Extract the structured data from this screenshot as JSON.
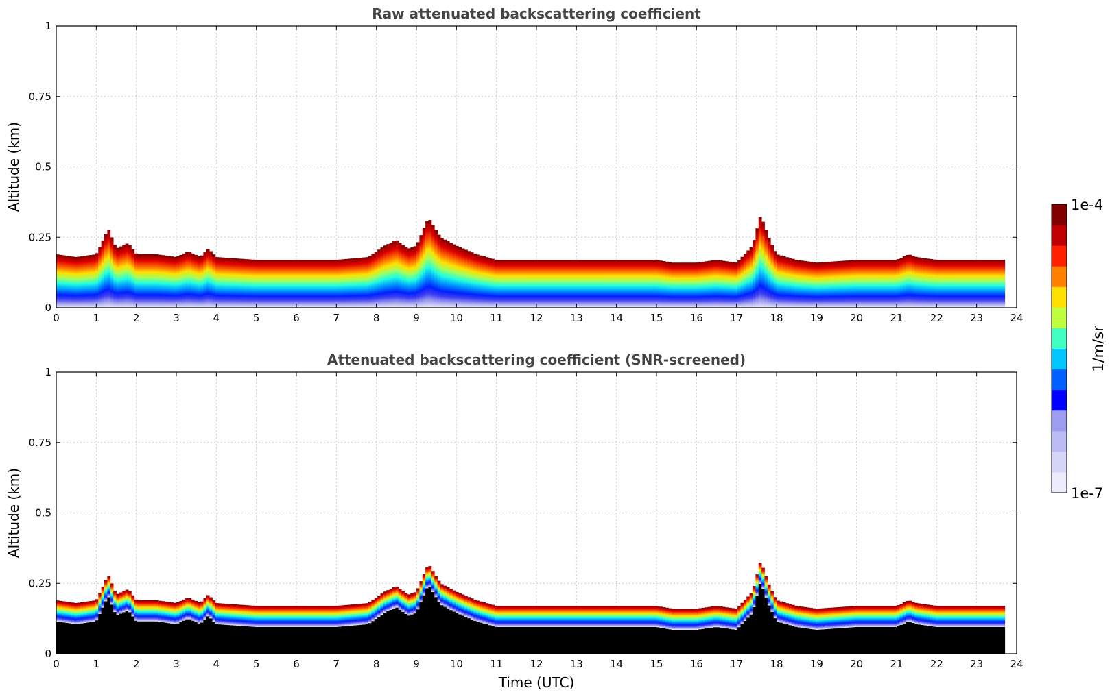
{
  "chart_data": [
    {
      "type": "heatmap",
      "id": "raw",
      "title": "Raw attenuated backscattering coefficient",
      "xlabel": "",
      "ylabel": "Altitude (km)",
      "xlim": [
        0,
        24
      ],
      "ylim": [
        0,
        1
      ],
      "xticks": [
        "0",
        "1",
        "2",
        "3",
        "4",
        "5",
        "6",
        "7",
        "8",
        "9",
        "10",
        "11",
        "12",
        "13",
        "14",
        "15",
        "16",
        "17",
        "18",
        "19",
        "20",
        "21",
        "22",
        "23",
        "24"
      ],
      "yticks": [
        "0",
        "0.25",
        "0.5",
        "0.75",
        "1"
      ],
      "data_end_time": 23.7,
      "screened": false,
      "top_altitude_profile": {
        "time": [
          0,
          0.5,
          1.0,
          1.2,
          1.3,
          1.5,
          1.8,
          2.0,
          2.5,
          3.0,
          3.3,
          3.6,
          3.8,
          4.0,
          5.0,
          6.0,
          7.0,
          7.8,
          8.2,
          8.5,
          8.8,
          9.0,
          9.3,
          9.6,
          10.0,
          10.5,
          11.0,
          12.0,
          13.0,
          14.0,
          15.0,
          15.4,
          16.0,
          16.5,
          17.0,
          17.4,
          17.6,
          17.8,
          18.0,
          18.5,
          19.0,
          20.0,
          21.0,
          21.3,
          21.5,
          22.0,
          23.0,
          23.7
        ],
        "altitude_km": [
          0.19,
          0.18,
          0.19,
          0.25,
          0.28,
          0.21,
          0.23,
          0.19,
          0.19,
          0.18,
          0.2,
          0.18,
          0.21,
          0.18,
          0.17,
          0.17,
          0.17,
          0.18,
          0.22,
          0.24,
          0.21,
          0.22,
          0.32,
          0.25,
          0.22,
          0.19,
          0.17,
          0.17,
          0.17,
          0.17,
          0.17,
          0.16,
          0.16,
          0.17,
          0.16,
          0.22,
          0.33,
          0.25,
          0.19,
          0.17,
          0.16,
          0.17,
          0.17,
          0.19,
          0.18,
          0.17,
          0.17,
          0.17
        ]
      }
    },
    {
      "type": "heatmap",
      "id": "screened",
      "title": "Attenuated backscattering coefficient (SNR-screened)",
      "xlabel": "Time (UTC)",
      "ylabel": "Altitude (km)",
      "xlim": [
        0,
        24
      ],
      "ylim": [
        0,
        1
      ],
      "xticks": [
        "0",
        "1",
        "2",
        "3",
        "4",
        "5",
        "6",
        "7",
        "8",
        "9",
        "10",
        "11",
        "12",
        "13",
        "14",
        "15",
        "16",
        "17",
        "18",
        "19",
        "20",
        "21",
        "22",
        "23",
        "24"
      ],
      "yticks": [
        "0",
        "0.25",
        "0.5",
        "0.75",
        "1"
      ],
      "data_end_time": 23.7,
      "screened": true,
      "top_altitude_profile": {
        "time": [
          0,
          0.5,
          1.0,
          1.2,
          1.3,
          1.5,
          1.8,
          2.0,
          2.5,
          3.0,
          3.3,
          3.6,
          3.8,
          4.0,
          5.0,
          6.0,
          7.0,
          7.8,
          8.2,
          8.5,
          8.8,
          9.0,
          9.3,
          9.6,
          10.0,
          10.5,
          11.0,
          12.0,
          13.0,
          14.0,
          15.0,
          15.4,
          16.0,
          16.5,
          17.0,
          17.4,
          17.6,
          17.8,
          18.0,
          18.5,
          19.0,
          20.0,
          21.0,
          21.3,
          21.5,
          22.0,
          23.0,
          23.7
        ],
        "altitude_km": [
          0.19,
          0.18,
          0.19,
          0.25,
          0.28,
          0.21,
          0.23,
          0.19,
          0.19,
          0.18,
          0.2,
          0.18,
          0.21,
          0.18,
          0.17,
          0.17,
          0.17,
          0.18,
          0.22,
          0.24,
          0.21,
          0.22,
          0.32,
          0.25,
          0.22,
          0.19,
          0.17,
          0.17,
          0.17,
          0.17,
          0.17,
          0.16,
          0.16,
          0.17,
          0.16,
          0.22,
          0.33,
          0.25,
          0.19,
          0.17,
          0.16,
          0.17,
          0.17,
          0.19,
          0.18,
          0.17,
          0.17,
          0.17
        ]
      }
    }
  ],
  "colorbar": {
    "label": "1/m/sr",
    "max_label": "1e-4",
    "min_label": "1e-7",
    "scale": "log",
    "range": [
      1e-07,
      0.0001
    ],
    "colors": [
      "#ececfc",
      "#d6d6f8",
      "#bcbcf4",
      "#9c9cf0",
      "#0000ff",
      "#0060ff",
      "#00c8ff",
      "#40ffc0",
      "#c0ff40",
      "#ffe000",
      "#ff8000",
      "#ff2000",
      "#c00000",
      "#800000"
    ]
  }
}
